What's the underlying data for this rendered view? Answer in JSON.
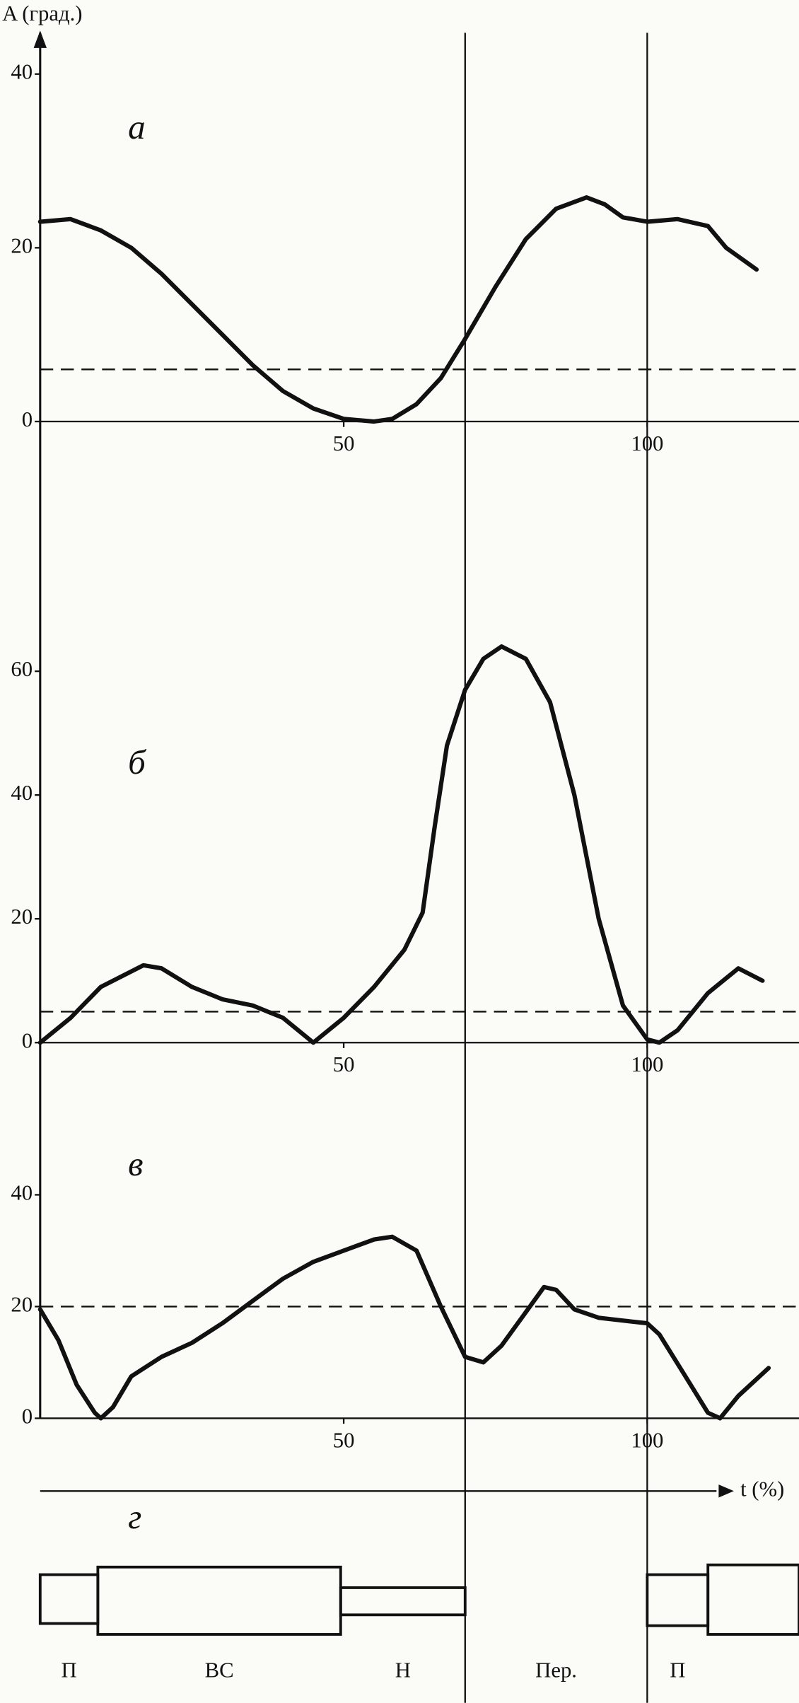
{
  "y_label": "A (град.)",
  "x_label": "t (%)",
  "chart_data": [
    {
      "type": "line",
      "label": "а",
      "color": "#111111",
      "xlim": [
        0,
        125
      ],
      "ylim": [
        0,
        45
      ],
      "xticks": [
        50,
        100
      ],
      "yticks": [
        0,
        20,
        40
      ],
      "reference_line": 6,
      "x": [
        0,
        5,
        10,
        15,
        20,
        25,
        30,
        35,
        40,
        45,
        50,
        55,
        58,
        62,
        66,
        70,
        75,
        80,
        85,
        90,
        93,
        96,
        100,
        105,
        110,
        113,
        118
      ],
      "values": [
        23,
        23.3,
        22,
        20,
        17,
        13.5,
        10,
        6.5,
        3.5,
        1.5,
        0.3,
        0,
        0.3,
        2,
        5,
        9.5,
        15.5,
        21,
        24.5,
        25.8,
        25,
        23.5,
        23,
        23.3,
        22.5,
        20,
        17.5
      ]
    },
    {
      "type": "line",
      "label": "б",
      "color": "#111111",
      "xlim": [
        0,
        125
      ],
      "ylim": [
        0,
        70
      ],
      "xticks": [
        50,
        100
      ],
      "yticks": [
        0,
        20,
        40,
        60
      ],
      "reference_line": 5,
      "x": [
        0,
        5,
        10,
        17,
        20,
        25,
        30,
        35,
        40,
        45,
        50,
        55,
        60,
        63,
        65,
        67,
        70,
        73,
        76,
        80,
        84,
        88,
        92,
        96,
        100,
        102,
        105,
        110,
        115,
        119
      ],
      "values": [
        0,
        4,
        9,
        12.5,
        12,
        9,
        7,
        6,
        4,
        0,
        4,
        9,
        15,
        21,
        35,
        48,
        57,
        62,
        64,
        62,
        55,
        40,
        20,
        6,
        0.5,
        0,
        2,
        8,
        12,
        10
      ]
    },
    {
      "type": "line",
      "label": "в",
      "color": "#111111",
      "xlim": [
        0,
        125
      ],
      "ylim": [
        0,
        55
      ],
      "xticks": [
        50,
        100
      ],
      "yticks": [
        0,
        20,
        40
      ],
      "reference_line": 20,
      "x": [
        0,
        3,
        6,
        9,
        10,
        12,
        15,
        20,
        25,
        30,
        35,
        40,
        45,
        50,
        55,
        58,
        62,
        66,
        70,
        73,
        76,
        80,
        83,
        85,
        88,
        92,
        96,
        100,
        102,
        106,
        110,
        112,
        115,
        120
      ],
      "values": [
        19.5,
        14,
        6,
        1,
        0,
        2,
        7.5,
        11,
        13.5,
        17,
        21,
        25,
        28,
        30,
        32,
        32.5,
        30,
        20,
        11,
        10,
        13,
        19,
        23.5,
        23,
        19.5,
        18,
        17.5,
        17,
        15,
        8,
        1,
        0,
        4,
        9
      ]
    },
    {
      "type": "phases",
      "label": "г",
      "xlim": [
        0,
        125
      ],
      "vlines": [
        70,
        100
      ],
      "phases": [
        {
          "name": "П",
          "start": 0,
          "end": 9.5
        },
        {
          "name": "ВС",
          "start": 9.5,
          "end": 49.5
        },
        {
          "name": "Н",
          "start": 49.5,
          "end": 70
        },
        {
          "name": "Пер.",
          "start": 70,
          "end": 100
        },
        {
          "name": "П",
          "start": 100,
          "end": 110
        },
        {
          "name": null,
          "start": 110,
          "end": 125
        }
      ]
    }
  ]
}
